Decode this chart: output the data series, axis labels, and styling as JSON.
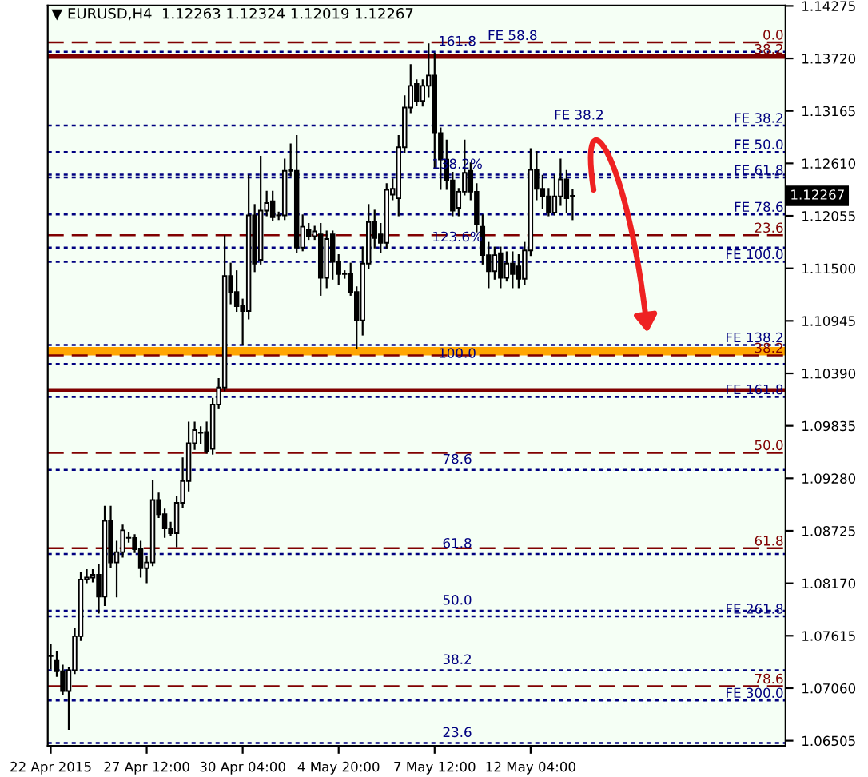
{
  "chart_data": {
    "type": "candlestick",
    "title": "▼ EURUSD,H4  1.12263 1.12324 1.12019 1.12267",
    "categories": [
      "22 Apr 2015",
      null,
      null,
      null,
      null,
      null,
      null,
      null,
      null,
      null,
      null,
      null,
      null,
      null,
      null,
      null,
      "27 Apr 12:00",
      null,
      null,
      null,
      null,
      null,
      null,
      null,
      null,
      null,
      null,
      null,
      null,
      null,
      null,
      null,
      "30 Apr 04:00",
      null,
      null,
      null,
      null,
      null,
      null,
      null,
      null,
      null,
      null,
      null,
      null,
      null,
      null,
      null,
      "4 May 20:00",
      null,
      null,
      null,
      null,
      null,
      null,
      null,
      null,
      null,
      null,
      null,
      null,
      null,
      null,
      null,
      "7 May 12:00",
      null,
      null,
      null,
      null,
      null,
      null,
      null,
      null,
      null,
      null,
      null,
      null,
      null,
      null,
      null,
      "12 May 04:00",
      null,
      null,
      null,
      null,
      null,
      null,
      null,
      null,
      null,
      null,
      null,
      null,
      null,
      null,
      null,
      null,
      null,
      null,
      null,
      null,
      null,
      null,
      null,
      null,
      null,
      null,
      null,
      null,
      null,
      null,
      null,
      null,
      null,
      null,
      null,
      null,
      null,
      null,
      null,
      null,
      null,
      null
    ],
    "ohlc": [
      [
        1.074,
        1.0752,
        1.0727,
        1.074
      ],
      [
        1.0735,
        1.0744,
        1.0719,
        1.0724
      ],
      [
        1.0724,
        1.073,
        1.07,
        1.0703
      ],
      [
        1.0703,
        1.0727,
        1.0663,
        1.0725
      ],
      [
        1.0725,
        1.0769,
        1.0722,
        1.0761
      ],
      [
        1.0761,
        1.0828,
        1.0757,
        1.0821
      ],
      [
        1.0821,
        1.0831,
        1.0818,
        1.0823
      ],
      [
        1.0823,
        1.0831,
        1.0819,
        1.0826
      ],
      [
        1.0826,
        1.0836,
        1.0786,
        1.0803
      ],
      [
        1.0803,
        1.0898,
        1.0794,
        1.0883
      ],
      [
        1.0883,
        1.0898,
        1.0834,
        1.0839
      ],
      [
        1.0839,
        1.0861,
        1.0803,
        1.085
      ],
      [
        1.085,
        1.0878,
        1.0845,
        1.0873
      ],
      [
        1.0865,
        1.087,
        1.0861,
        1.0865
      ],
      [
        1.0865,
        1.0868,
        1.085,
        1.0853
      ],
      [
        1.0853,
        1.0861,
        1.0824,
        1.0833
      ],
      [
        1.0833,
        1.0845,
        1.0818,
        1.0839
      ],
      [
        1.0839,
        1.0925,
        1.0836,
        1.0905
      ],
      [
        1.0905,
        1.0912,
        1.0887,
        1.089
      ],
      [
        1.089,
        1.0895,
        1.0866,
        1.0875
      ],
      [
        1.0875,
        1.0881,
        1.0868,
        1.087
      ],
      [
        1.087,
        1.0908,
        1.0856,
        1.0902
      ],
      [
        1.0902,
        1.0949,
        1.0898,
        1.0925
      ],
      [
        1.0925,
        1.0987,
        1.0915,
        1.0965
      ],
      [
        1.0965,
        1.0987,
        1.0959,
        1.0979
      ],
      [
        1.0976,
        1.0982,
        1.0965,
        1.0976
      ],
      [
        1.0977,
        1.0987,
        1.0955,
        1.0957
      ],
      [
        1.0959,
        1.1012,
        1.0954,
        1.1006
      ],
      [
        1.1006,
        1.1033,
        1.1002,
        1.1024
      ],
      [
        1.1024,
        1.1184,
        1.1021,
        1.1142
      ],
      [
        1.1142,
        1.1155,
        1.1113,
        1.1125
      ],
      [
        1.1125,
        1.1147,
        1.1105,
        1.111
      ],
      [
        1.111,
        1.1117,
        1.107,
        1.1105
      ],
      [
        1.1105,
        1.1248,
        1.1097,
        1.1206
      ],
      [
        1.1206,
        1.1217,
        1.1147,
        1.1155
      ],
      [
        1.1159,
        1.1268,
        1.1155,
        1.1211
      ],
      [
        1.1211,
        1.1231,
        1.1206,
        1.1219
      ],
      [
        1.1221,
        1.1231,
        1.1201,
        1.1204
      ],
      [
        1.1206,
        1.1209,
        1.1202,
        1.1206
      ],
      [
        1.1206,
        1.1265,
        1.1202,
        1.1253
      ],
      [
        1.1253,
        1.1281,
        1.1248,
        1.1254
      ],
      [
        1.1253,
        1.129,
        1.1167,
        1.1172
      ],
      [
        1.1172,
        1.1206,
        1.1169,
        1.1194
      ],
      [
        1.1191,
        1.1197,
        1.1181,
        1.1184
      ],
      [
        1.1184,
        1.1194,
        1.1181,
        1.1189
      ],
      [
        1.1186,
        1.1197,
        1.1122,
        1.114
      ],
      [
        1.114,
        1.1189,
        1.113,
        1.1181
      ],
      [
        1.1186,
        1.1189,
        1.1139,
        1.1157
      ],
      [
        1.1157,
        1.1164,
        1.1133,
        1.1144
      ],
      [
        1.1144,
        1.1147,
        1.114,
        1.1144
      ],
      [
        1.1144,
        1.1155,
        1.1122,
        1.1125
      ],
      [
        1.1125,
        1.113,
        1.1066,
        1.1095
      ],
      [
        1.1095,
        1.1172,
        1.108,
        1.1155
      ],
      [
        1.1155,
        1.1217,
        1.115,
        1.1199
      ],
      [
        1.1199,
        1.1211,
        1.1172,
        1.1182
      ],
      [
        1.1186,
        1.1197,
        1.1167,
        1.1177
      ],
      [
        1.1177,
        1.1239,
        1.1172,
        1.1233
      ],
      [
        1.1228,
        1.1244,
        1.1223,
        1.1234
      ],
      [
        1.1224,
        1.129,
        1.1206,
        1.1278
      ],
      [
        1.1278,
        1.1332,
        1.1273,
        1.132
      ],
      [
        1.132,
        1.1365,
        1.1315,
        1.1343
      ],
      [
        1.1345,
        1.1349,
        1.1323,
        1.1327
      ],
      [
        1.1327,
        1.1349,
        1.1322,
        1.1343
      ],
      [
        1.1343,
        1.1387,
        1.1332,
        1.1354
      ],
      [
        1.1354,
        1.1377,
        1.1256,
        1.1293
      ],
      [
        1.1293,
        1.1298,
        1.1234,
        1.1265
      ],
      [
        1.1265,
        1.1285,
        1.1234,
        1.1243
      ],
      [
        1.1243,
        1.1251,
        1.1206,
        1.1211
      ],
      [
        1.1214,
        1.1234,
        1.1206,
        1.1231
      ],
      [
        1.1231,
        1.1285,
        1.1228,
        1.1251
      ],
      [
        1.1253,
        1.1261,
        1.1223,
        1.1231
      ],
      [
        1.1231,
        1.1239,
        1.1189,
        1.1197
      ],
      [
        1.1194,
        1.1206,
        1.1155,
        1.1164
      ],
      [
        1.1164,
        1.1177,
        1.113,
        1.1147
      ],
      [
        1.1147,
        1.1172,
        1.1139,
        1.1164
      ],
      [
        1.1166,
        1.1172,
        1.113,
        1.114
      ],
      [
        1.114,
        1.1167,
        1.1137,
        1.1155
      ],
      [
        1.1155,
        1.1167,
        1.113,
        1.1144
      ],
      [
        1.1152,
        1.1164,
        1.113,
        1.1139
      ],
      [
        1.1139,
        1.1177,
        1.1133,
        1.1169
      ],
      [
        1.1169,
        1.1276,
        1.1164,
        1.1254
      ],
      [
        1.1254,
        1.1273,
        1.1223,
        1.1234
      ],
      [
        1.1234,
        1.1248,
        1.1214,
        1.1226
      ],
      [
        1.1226,
        1.1234,
        1.1206,
        1.1209
      ],
      [
        1.1209,
        1.1248,
        1.1207,
        1.1226
      ],
      [
        1.1226,
        1.1265,
        1.1217,
        1.1244
      ],
      [
        1.1244,
        1.1253,
        1.1209,
        1.1224
      ],
      [
        1.12263,
        1.12324,
        1.12019,
        1.12267
      ],
      null,
      null,
      null,
      null,
      null,
      null,
      null,
      null,
      null,
      null,
      null,
      null,
      null,
      null,
      null,
      null,
      null,
      null,
      null,
      null,
      null,
      null,
      null,
      null,
      null,
      null,
      null,
      null,
      null,
      null,
      null,
      null,
      null,
      null,
      null
    ],
    "ylim": [
      1.0645,
      1.1428
    ],
    "yticks": [
      1.14275,
      {
        "value": 1.1372,
        "label": "1.13720"
      },
      1.13165,
      {
        "value": 1.1261,
        "label": "1.12610"
      },
      1.12055,
      {
        "value": 1.115,
        "label": "1.11500"
      },
      1.10945,
      {
        "value": 1.1039,
        "label": "1.10390"
      },
      1.09835,
      {
        "value": 1.0928,
        "label": "1.09280"
      },
      1.08725,
      {
        "value": 1.0817,
        "label": "1.08170"
      },
      1.07615,
      {
        "value": 1.0706,
        "label": "1.07060"
      },
      1.06505
    ],
    "grid": false,
    "ref_lines": [
      {
        "axis": "y",
        "value": 1.1389,
        "color": "#800000",
        "line_style": "dashed"
      },
      {
        "axis": "y",
        "value": 1.1374,
        "color": "#800000",
        "line_style": "solid"
      },
      {
        "axis": "y",
        "value": 1.1185,
        "color": "#800000",
        "line_style": "dashed"
      },
      {
        "axis": "y",
        "value": 1.1058,
        "color": "#800000",
        "line_style": "dashed"
      },
      {
        "axis": "y",
        "value": 1.1021,
        "color": "#800000",
        "line_style": "solid"
      },
      {
        "axis": "y",
        "value": 1.0955,
        "color": "#800000",
        "line_style": "dashed"
      },
      {
        "axis": "y",
        "value": 1.0854,
        "color": "#800000",
        "line_style": "dashed"
      },
      {
        "axis": "y",
        "value": 1.0708,
        "color": "#800000",
        "line_style": "dashed"
      },
      {
        "axis": "y",
        "value": 1.1301,
        "label": "FE 38.2",
        "color": "#000080",
        "line_style": "dotted"
      },
      {
        "axis": "y",
        "value": 1.1273,
        "label": "FE 50.0",
        "color": "#000080",
        "line_style": "dotted"
      },
      {
        "axis": "y",
        "value": 1.1246,
        "label": "FE 61.8",
        "color": "#000080",
        "line_style": "dotted"
      },
      {
        "axis": "y",
        "value": 1.1207,
        "label": "FE 78.6",
        "color": "#000080",
        "line_style": "dotted"
      },
      {
        "axis": "y",
        "value": 1.1157,
        "label": "FE 100.0",
        "color": "#000080",
        "line_style": "dotted"
      },
      {
        "axis": "y",
        "value": 1.1069,
        "label": "FE 138.2",
        "color": "#000080",
        "line_style": "dotted"
      },
      {
        "axis": "y",
        "value": 1.1014,
        "label": "FE 161.8",
        "color": "#000080",
        "line_style": "dotted"
      },
      {
        "axis": "y",
        "value": 1.0782,
        "label": "FE 261.8",
        "color": "#000080",
        "line_style": "dotted"
      },
      {
        "axis": "y",
        "value": 1.0693,
        "label": "FE 300.0",
        "color": "#000080",
        "line_style": "dotted"
      },
      {
        "axis": "y",
        "value": 1.1379,
        "color": "#000080",
        "line_style": "dotted"
      },
      {
        "axis": "y",
        "value": 1.1249,
        "color": "#000080",
        "line_style": "dotted"
      },
      {
        "axis": "y",
        "value": 1.1172,
        "color": "#000080",
        "line_style": "dotted"
      },
      {
        "axis": "y",
        "value": 1.1049,
        "color": "#000080",
        "line_style": "dotted"
      },
      {
        "axis": "y",
        "value": 1.0937,
        "color": "#000080",
        "line_style": "dotted"
      },
      {
        "axis": "y",
        "value": 1.0848,
        "color": "#000080",
        "line_style": "dotted"
      },
      {
        "axis": "y",
        "value": 1.0788,
        "color": "#000080",
        "line_style": "dotted"
      },
      {
        "axis": "y",
        "value": 1.0725,
        "color": "#000080",
        "line_style": "dotted"
      },
      {
        "axis": "y",
        "value": 1.0648,
        "color": "#000080",
        "line_style": "dotted"
      }
    ],
    "bands": [
      {
        "axis": "y",
        "from": 1.1058,
        "to": 1.1067,
        "color": "#ffa500"
      }
    ],
    "annotations": [
      {
        "text": "0.0",
        "y": 1.1389
      },
      {
        "text": "38.2",
        "y": 1.1374
      },
      {
        "text": "23.6",
        "y": 1.1185
      },
      {
        "text": "38.2",
        "y": 1.1058
      },
      {
        "text": "50.0",
        "y": 1.0955
      },
      {
        "text": "61.8",
        "y": 1.0854
      },
      {
        "text": "78.6",
        "y": 1.0708
      },
      {
        "text": "161.8",
        "y": 1.1379
      },
      {
        "text": "FE 58.8",
        "y": 1.1385
      },
      {
        "text": "FE 38.2",
        "y": 1.1301
      },
      {
        "text": "138.2%",
        "y": 1.1249
      },
      {
        "text": "123.6%",
        "y": 1.1172
      },
      {
        "text": "100.0",
        "y": 1.1049
      },
      {
        "text": "78.6",
        "y": 1.0937
      },
      {
        "text": "61.8",
        "y": 1.0848
      },
      {
        "text": "50.0",
        "y": 1.0788
      },
      {
        "text": "38.2",
        "y": 1.0725
      },
      {
        "text": "23.6",
        "y": 1.0648
      },
      "1.12267"
    ]
  }
}
